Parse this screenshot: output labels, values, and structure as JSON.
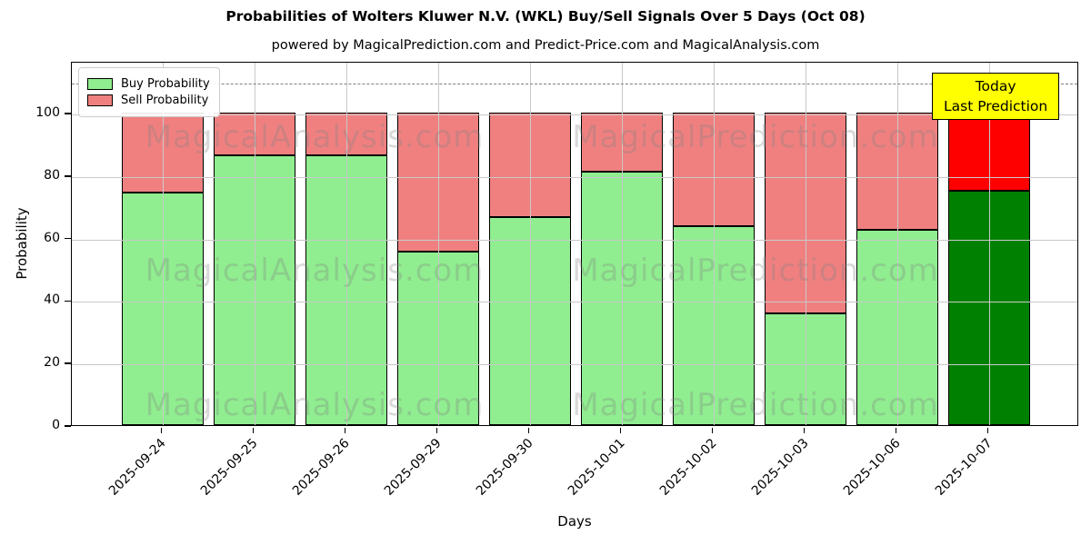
{
  "title": "Probabilities of Wolters Kluwer N.V. (WKL) Buy/Sell Signals Over 5 Days (Oct 08)",
  "subtitle": "powered by MagicalPrediction.com and Predict-Price.com and MagicalAnalysis.com",
  "legend": {
    "items": [
      {
        "label": "Buy Probability",
        "color": "#90ee90"
      },
      {
        "label": "Sell Probability",
        "color": "#f08080"
      }
    ],
    "position": "upper left"
  },
  "annotation": {
    "line1": "Today",
    "line2": "Last Prediction",
    "bg_color": "#ffff00",
    "border_color": "#000000"
  },
  "watermarks": {
    "left_text": "MagicalAnalysis.com",
    "right_text": "MagicalPrediction.com"
  },
  "chart_data": {
    "type": "bar",
    "stacked": true,
    "title": "Probabilities of Wolters Kluwer N.V. (WKL) Buy/Sell Signals Over 5 Days (Oct 08)",
    "xlabel": "Days",
    "ylabel": "Probability",
    "categories": [
      "2025-09-24",
      "2025-09-25",
      "2025-09-26",
      "2025-09-29",
      "2025-09-30",
      "2025-10-01",
      "2025-10-02",
      "2025-10-03",
      "2025-10-06",
      "2025-10-07"
    ],
    "series": [
      {
        "name": "Buy Probability",
        "color": "#90ee90",
        "last_bar_color": "#008000",
        "values": [
          74.5,
          86.4,
          86.4,
          55.6,
          66.7,
          81.0,
          63.6,
          35.7,
          62.5,
          75.0
        ]
      },
      {
        "name": "Sell Probability",
        "color": "#f08080",
        "last_bar_color": "#ff0000",
        "values": [
          25.5,
          13.6,
          13.6,
          44.4,
          33.3,
          19.0,
          36.4,
          64.3,
          37.5,
          25.0
        ]
      }
    ],
    "yticks": [
      0,
      20,
      40,
      60,
      80,
      100
    ],
    "ylim": [
      0,
      116.6
    ],
    "dashed_line_y": 110,
    "grid": true,
    "bar_edge_color": "#000000"
  }
}
